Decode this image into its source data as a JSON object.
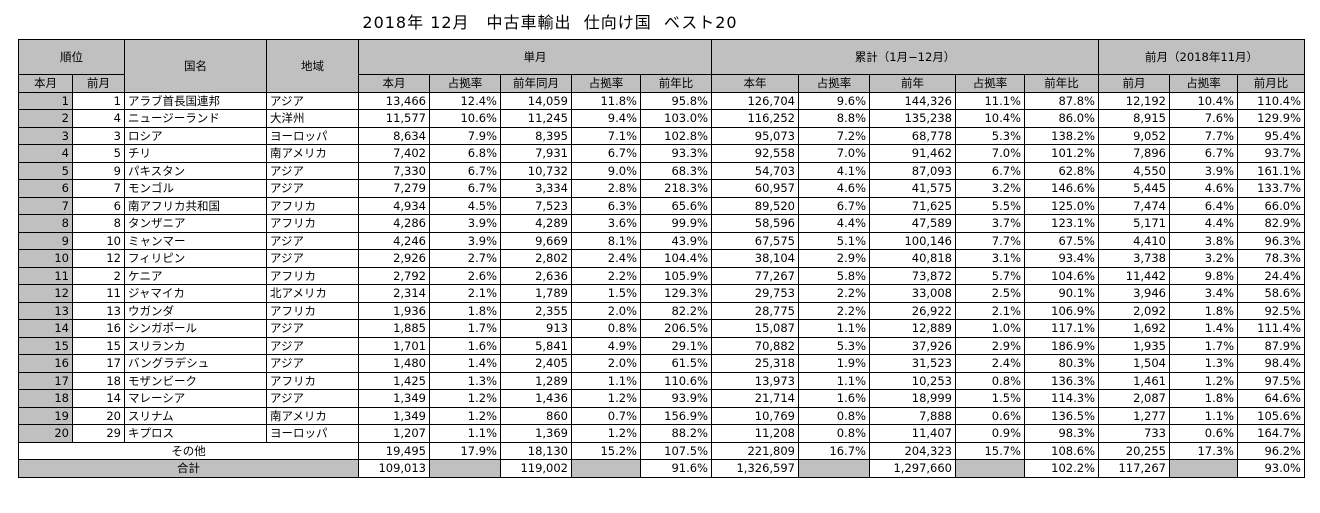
{
  "title": "2018年 12月　中古車輸出  仕向け国  ベスト20",
  "headers": {
    "rank": "順位",
    "country": "国名",
    "region": "地域",
    "monthly": "単月",
    "cumulative": "累計（1月−12月）",
    "prev_month": "前月（2018年11月）",
    "this_month": "本月",
    "prev_month_short": "前月",
    "share": "占拠率",
    "yoy_month": "前年同月",
    "yoy_ratio": "前年比",
    "this_year": "本年",
    "prev_year": "前年",
    "prev_ratio": "前月比"
  },
  "rows": [
    {
      "rank": "1",
      "prev_rank": "1",
      "country": "アラブ首長国連邦",
      "region": "アジア",
      "m": "13,466",
      "ms": "12.4%",
      "ly": "14,059",
      "lys": "11.8%",
      "yoy": "95.8%",
      "cy": "126,704",
      "cys": "9.6%",
      "py": "144,326",
      "pys": "11.1%",
      "cyoy": "87.8%",
      "pm": "12,192",
      "pms": "10.4%",
      "pmr": "110.4%"
    },
    {
      "rank": "2",
      "prev_rank": "4",
      "country": "ニュージーランド",
      "region": "大洋州",
      "m": "11,577",
      "ms": "10.6%",
      "ly": "11,245",
      "lys": "9.4%",
      "yoy": "103.0%",
      "cy": "116,252",
      "cys": "8.8%",
      "py": "135,238",
      "pys": "10.4%",
      "cyoy": "86.0%",
      "pm": "8,915",
      "pms": "7.6%",
      "pmr": "129.9%"
    },
    {
      "rank": "3",
      "prev_rank": "3",
      "country": "ロシア",
      "region": "ヨーロッパ",
      "m": "8,634",
      "ms": "7.9%",
      "ly": "8,395",
      "lys": "7.1%",
      "yoy": "102.8%",
      "cy": "95,073",
      "cys": "7.2%",
      "py": "68,778",
      "pys": "5.3%",
      "cyoy": "138.2%",
      "pm": "9,052",
      "pms": "7.7%",
      "pmr": "95.4%"
    },
    {
      "rank": "4",
      "prev_rank": "5",
      "country": "チリ",
      "region": "南アメリカ",
      "m": "7,402",
      "ms": "6.8%",
      "ly": "7,931",
      "lys": "6.7%",
      "yoy": "93.3%",
      "cy": "92,558",
      "cys": "7.0%",
      "py": "91,462",
      "pys": "7.0%",
      "cyoy": "101.2%",
      "pm": "7,896",
      "pms": "6.7%",
      "pmr": "93.7%"
    },
    {
      "rank": "5",
      "prev_rank": "9",
      "country": "パキスタン",
      "region": "アジア",
      "m": "7,330",
      "ms": "6.7%",
      "ly": "10,732",
      "lys": "9.0%",
      "yoy": "68.3%",
      "cy": "54,703",
      "cys": "4.1%",
      "py": "87,093",
      "pys": "6.7%",
      "cyoy": "62.8%",
      "pm": "4,550",
      "pms": "3.9%",
      "pmr": "161.1%"
    },
    {
      "rank": "6",
      "prev_rank": "7",
      "country": "モンゴル",
      "region": "アジア",
      "m": "7,279",
      "ms": "6.7%",
      "ly": "3,334",
      "lys": "2.8%",
      "yoy": "218.3%",
      "cy": "60,957",
      "cys": "4.6%",
      "py": "41,575",
      "pys": "3.2%",
      "cyoy": "146.6%",
      "pm": "5,445",
      "pms": "4.6%",
      "pmr": "133.7%"
    },
    {
      "rank": "7",
      "prev_rank": "6",
      "country": "南アフリカ共和国",
      "region": "アフリカ",
      "m": "4,934",
      "ms": "4.5%",
      "ly": "7,523",
      "lys": "6.3%",
      "yoy": "65.6%",
      "cy": "89,520",
      "cys": "6.7%",
      "py": "71,625",
      "pys": "5.5%",
      "cyoy": "125.0%",
      "pm": "7,474",
      "pms": "6.4%",
      "pmr": "66.0%"
    },
    {
      "rank": "8",
      "prev_rank": "8",
      "country": "タンザニア",
      "region": "アフリカ",
      "m": "4,286",
      "ms": "3.9%",
      "ly": "4,289",
      "lys": "3.6%",
      "yoy": "99.9%",
      "cy": "58,596",
      "cys": "4.4%",
      "py": "47,589",
      "pys": "3.7%",
      "cyoy": "123.1%",
      "pm": "5,171",
      "pms": "4.4%",
      "pmr": "82.9%"
    },
    {
      "rank": "9",
      "prev_rank": "10",
      "country": "ミャンマー",
      "region": "アジア",
      "m": "4,246",
      "ms": "3.9%",
      "ly": "9,669",
      "lys": "8.1%",
      "yoy": "43.9%",
      "cy": "67,575",
      "cys": "5.1%",
      "py": "100,146",
      "pys": "7.7%",
      "cyoy": "67.5%",
      "pm": "4,410",
      "pms": "3.8%",
      "pmr": "96.3%"
    },
    {
      "rank": "10",
      "prev_rank": "12",
      "country": "フィリピン",
      "region": "アジア",
      "m": "2,926",
      "ms": "2.7%",
      "ly": "2,802",
      "lys": "2.4%",
      "yoy": "104.4%",
      "cy": "38,104",
      "cys": "2.9%",
      "py": "40,818",
      "pys": "3.1%",
      "cyoy": "93.4%",
      "pm": "3,738",
      "pms": "3.2%",
      "pmr": "78.3%"
    },
    {
      "rank": "11",
      "prev_rank": "2",
      "country": "ケニア",
      "region": "アフリカ",
      "m": "2,792",
      "ms": "2.6%",
      "ly": "2,636",
      "lys": "2.2%",
      "yoy": "105.9%",
      "cy": "77,267",
      "cys": "5.8%",
      "py": "73,872",
      "pys": "5.7%",
      "cyoy": "104.6%",
      "pm": "11,442",
      "pms": "9.8%",
      "pmr": "24.4%"
    },
    {
      "rank": "12",
      "prev_rank": "11",
      "country": "ジャマイカ",
      "region": "北アメリカ",
      "m": "2,314",
      "ms": "2.1%",
      "ly": "1,789",
      "lys": "1.5%",
      "yoy": "129.3%",
      "cy": "29,753",
      "cys": "2.2%",
      "py": "33,008",
      "pys": "2.5%",
      "cyoy": "90.1%",
      "pm": "3,946",
      "pms": "3.4%",
      "pmr": "58.6%"
    },
    {
      "rank": "13",
      "prev_rank": "13",
      "country": "ウガンダ",
      "region": "アフリカ",
      "m": "1,936",
      "ms": "1.8%",
      "ly": "2,355",
      "lys": "2.0%",
      "yoy": "82.2%",
      "cy": "28,775",
      "cys": "2.2%",
      "py": "26,922",
      "pys": "2.1%",
      "cyoy": "106.9%",
      "pm": "2,092",
      "pms": "1.8%",
      "pmr": "92.5%"
    },
    {
      "rank": "14",
      "prev_rank": "16",
      "country": "シンガポール",
      "region": "アジア",
      "m": "1,885",
      "ms": "1.7%",
      "ly": "913",
      "lys": "0.8%",
      "yoy": "206.5%",
      "cy": "15,087",
      "cys": "1.1%",
      "py": "12,889",
      "pys": "1.0%",
      "cyoy": "117.1%",
      "pm": "1,692",
      "pms": "1.4%",
      "pmr": "111.4%"
    },
    {
      "rank": "15",
      "prev_rank": "15",
      "country": "スリランカ",
      "region": "アジア",
      "m": "1,701",
      "ms": "1.6%",
      "ly": "5,841",
      "lys": "4.9%",
      "yoy": "29.1%",
      "cy": "70,882",
      "cys": "5.3%",
      "py": "37,926",
      "pys": "2.9%",
      "cyoy": "186.9%",
      "pm": "1,935",
      "pms": "1.7%",
      "pmr": "87.9%"
    },
    {
      "rank": "16",
      "prev_rank": "17",
      "country": "バングラデシュ",
      "region": "アジア",
      "m": "1,480",
      "ms": "1.4%",
      "ly": "2,405",
      "lys": "2.0%",
      "yoy": "61.5%",
      "cy": "25,318",
      "cys": "1.9%",
      "py": "31,523",
      "pys": "2.4%",
      "cyoy": "80.3%",
      "pm": "1,504",
      "pms": "1.3%",
      "pmr": "98.4%"
    },
    {
      "rank": "17",
      "prev_rank": "18",
      "country": "モザンビーク",
      "region": "アフリカ",
      "m": "1,425",
      "ms": "1.3%",
      "ly": "1,289",
      "lys": "1.1%",
      "yoy": "110.6%",
      "cy": "13,973",
      "cys": "1.1%",
      "py": "10,253",
      "pys": "0.8%",
      "cyoy": "136.3%",
      "pm": "1,461",
      "pms": "1.2%",
      "pmr": "97.5%"
    },
    {
      "rank": "18",
      "prev_rank": "14",
      "country": "マレーシア",
      "region": "アジア",
      "m": "1,349",
      "ms": "1.2%",
      "ly": "1,436",
      "lys": "1.2%",
      "yoy": "93.9%",
      "cy": "21,714",
      "cys": "1.6%",
      "py": "18,999",
      "pys": "1.5%",
      "cyoy": "114.3%",
      "pm": "2,087",
      "pms": "1.8%",
      "pmr": "64.6%"
    },
    {
      "rank": "19",
      "prev_rank": "20",
      "country": "スリナム",
      "region": "南アメリカ",
      "m": "1,349",
      "ms": "1.2%",
      "ly": "860",
      "lys": "0.7%",
      "yoy": "156.9%",
      "cy": "10,769",
      "cys": "0.8%",
      "py": "7,888",
      "pys": "0.6%",
      "cyoy": "136.5%",
      "pm": "1,277",
      "pms": "1.1%",
      "pmr": "105.6%"
    },
    {
      "rank": "20",
      "prev_rank": "29",
      "country": "キプロス",
      "region": "ヨーロッパ",
      "m": "1,207",
      "ms": "1.1%",
      "ly": "1,369",
      "lys": "1.2%",
      "yoy": "88.2%",
      "cy": "11,208",
      "cys": "0.8%",
      "py": "11,407",
      "pys": "0.9%",
      "cyoy": "98.3%",
      "pm": "733",
      "pms": "0.6%",
      "pmr": "164.7%"
    }
  ],
  "others": {
    "label": "その他",
    "m": "19,495",
    "ms": "17.9%",
    "ly": "18,130",
    "lys": "15.2%",
    "yoy": "107.5%",
    "cy": "221,809",
    "cys": "16.7%",
    "py": "204,323",
    "pys": "15.7%",
    "cyoy": "108.6%",
    "pm": "20,255",
    "pms": "17.3%",
    "pmr": "96.2%"
  },
  "total": {
    "label": "合計",
    "m": "109,013",
    "ly": "119,002",
    "yoy": "91.6%",
    "cy": "1,326,597",
    "py": "1,297,660",
    "cyoy": "102.2%",
    "pm": "117,267",
    "pmr": "93.0%"
  }
}
